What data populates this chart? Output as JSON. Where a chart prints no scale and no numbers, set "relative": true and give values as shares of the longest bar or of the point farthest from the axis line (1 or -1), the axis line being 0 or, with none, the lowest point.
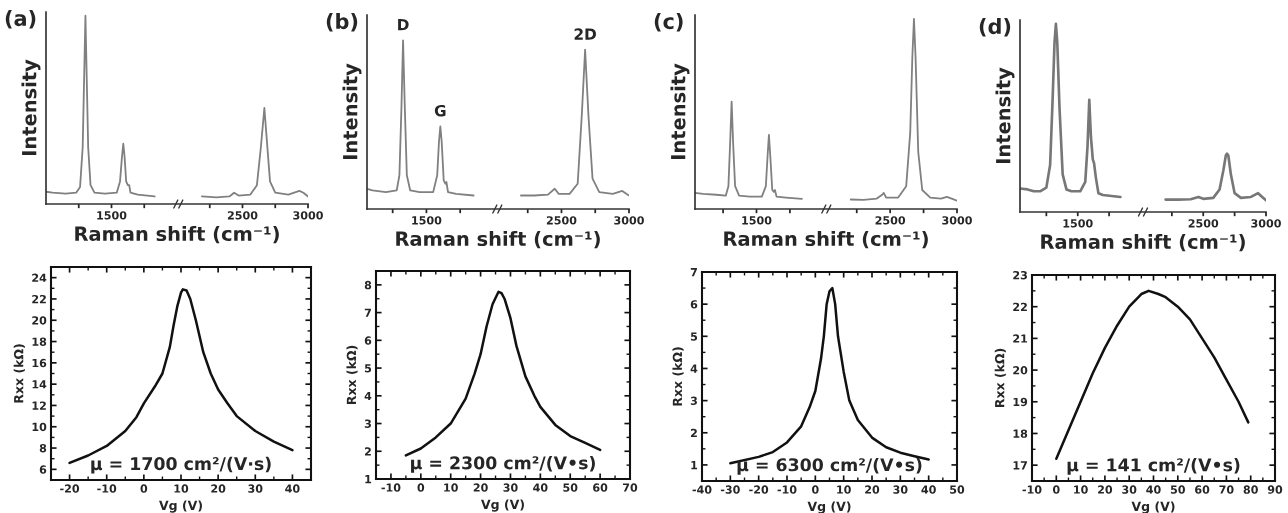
{
  "chart_data": [
    {
      "type": "line",
      "title": "(a)",
      "xlabel": "Raman shift (cm⁻¹)",
      "ylabel": "Intensity",
      "relative": true,
      "xlim": [
        1000,
        3000
      ],
      "xticks": [
        {
          "value": 1250,
          "label": null
        },
        1500,
        {
          "value": 1750,
          "label": null
        },
        {
          "value": 2250,
          "label": null
        },
        2500,
        {
          "value": 2750,
          "label": null
        },
        3000
      ],
      "series": [
        {
          "color": "#808080",
          "x": [
            1000,
            1050,
            1150,
            1230,
            1260,
            1280,
            1292,
            1301,
            1310,
            1322,
            1340,
            1370,
            1450,
            1540,
            1565,
            1580,
            1590,
            1600,
            1612,
            1625,
            1635,
            1645,
            1700,
            1830
          ],
          "values": [
            0.065,
            0.06,
            0.055,
            0.06,
            0.09,
            0.3,
            0.7,
            1,
            0.7,
            0.3,
            0.1,
            0.06,
            0.055,
            0.06,
            0.12,
            0.25,
            0.32,
            0.25,
            0.12,
            0.1,
            0.1,
            0.06,
            0.05,
            0.04
          ]
        },
        {
          "color": "#808080",
          "x": [
            2190,
            2300,
            2400,
            2436,
            2470,
            2560,
            2610,
            2640,
            2667,
            2690,
            2710,
            2750,
            2850,
            2934,
            2965,
            3000
          ],
          "values": [
            0.04,
            0.035,
            0.04,
            0.06,
            0.045,
            0.05,
            0.1,
            0.3,
            0.51,
            0.3,
            0.12,
            0.06,
            0.05,
            0.07,
            0.06,
            0.04
          ]
        }
      ]
    },
    {
      "type": "line",
      "title": "(b)",
      "xlabel": "Raman shift (cm⁻¹)",
      "ylabel": "Intensity",
      "relative": true,
      "xlim": [
        1060,
        3000
      ],
      "xticks": [
        {
          "value": 1250,
          "label": null
        },
        1500,
        {
          "value": 1750,
          "label": null
        },
        {
          "value": 2250,
          "label": null
        },
        2500,
        {
          "value": 2750,
          "label": null
        },
        3000
      ],
      "annotations": [
        {
          "text": "D",
          "x": 1327,
          "y": 1
        },
        {
          "text": "G",
          "x": 1603,
          "y": 0.49
        },
        {
          "text": "2D",
          "x": 2675,
          "y": 0.944
        }
      ],
      "series": [
        {
          "color": "#808080",
          "x": [
            1060,
            1100,
            1200,
            1280,
            1300,
            1315,
            1327,
            1340,
            1355,
            1380,
            1450,
            1550,
            1580,
            1593,
            1603,
            1613,
            1628,
            1640,
            1648,
            1660,
            1720,
            1850
          ],
          "values": [
            0.12,
            0.11,
            0.1,
            0.11,
            0.2,
            0.6,
            1,
            0.6,
            0.2,
            0.11,
            0.1,
            0.1,
            0.2,
            0.4,
            0.49,
            0.4,
            0.17,
            0.15,
            0.16,
            0.1,
            0.09,
            0.08
          ]
        },
        {
          "color": "#808080",
          "x": [
            2200,
            2300,
            2400,
            2450,
            2480,
            2560,
            2620,
            2650,
            2675,
            2700,
            2730,
            2780,
            2880,
            2950,
            2980,
            3000
          ],
          "values": [
            0.08,
            0.08,
            0.085,
            0.12,
            0.09,
            0.09,
            0.15,
            0.55,
            0.944,
            0.55,
            0.18,
            0.1,
            0.09,
            0.107,
            0.09,
            0.08
          ]
        }
      ]
    },
    {
      "type": "line",
      "title": "(c)",
      "xlabel": "Raman shift (cm⁻¹)",
      "ylabel": "Intensity",
      "relative": true,
      "xlim": [
        1040,
        3000
      ],
      "xticks": [
        {
          "value": 1250,
          "label": null
        },
        1500,
        {
          "value": 1750,
          "label": null
        },
        {
          "value": 2250,
          "label": null
        },
        2500,
        {
          "value": 2750,
          "label": null
        },
        3000
      ],
      "series": [
        {
          "color": "#808080",
          "x": [
            1040,
            1100,
            1200,
            1270,
            1290,
            1303,
            1314,
            1325,
            1340,
            1370,
            1450,
            1540,
            1570,
            1583,
            1593,
            1603,
            1618,
            1630,
            1638,
            1650,
            1720,
            1840
          ],
          "values": [
            0.085,
            0.08,
            0.075,
            0.07,
            0.12,
            0.35,
            0.565,
            0.35,
            0.12,
            0.07,
            0.065,
            0.065,
            0.12,
            0.28,
            0.39,
            0.28,
            0.1,
            0.09,
            0.1,
            0.065,
            0.06,
            0.053
          ]
        },
        {
          "color": "#808080",
          "x": [
            2205,
            2300,
            2400,
            2440,
            2452,
            2470,
            2560,
            2620,
            2650,
            2666,
            2678,
            2690,
            2710,
            2740,
            2800,
            2880,
            2924,
            2960,
            3000
          ],
          "values": [
            0.05,
            0.048,
            0.055,
            0.075,
            0.085,
            0.06,
            0.06,
            0.12,
            0.4,
            0.8,
            1,
            0.8,
            0.3,
            0.1,
            0.06,
            0.055,
            0.064,
            0.055,
            0.044
          ]
        }
      ]
    },
    {
      "type": "line",
      "title": "(d)",
      "xlabel": "Raman shift (cm⁻¹)",
      "ylabel": "Intensity",
      "relative": true,
      "xlim": [
        1040,
        3000
      ],
      "xticks": [
        {
          "value": 1250,
          "label": null
        },
        1500,
        {
          "value": 1750,
          "label": null
        },
        {
          "value": 2250,
          "label": null
        },
        2500,
        {
          "value": 2750,
          "label": null
        },
        3000
      ],
      "series": [
        {
          "color": "#777777",
          "x": [
            1040,
            1100,
            1150,
            1200,
            1250,
            1280,
            1300,
            1315,
            1326,
            1337,
            1355,
            1380,
            1410,
            1450,
            1520,
            1560,
            1578,
            1592,
            1605,
            1620,
            1630,
            1645,
            1665,
            1700,
            1840
          ],
          "values": [
            0.125,
            0.12,
            0.11,
            0.11,
            0.13,
            0.25,
            0.6,
            0.9,
            1,
            0.9,
            0.55,
            0.2,
            0.12,
            0.11,
            0.11,
            0.16,
            0.35,
            0.596,
            0.4,
            0.28,
            0.26,
            0.18,
            0.1,
            0.09,
            0.08
          ]
        },
        {
          "color": "#777777",
          "x": [
            2200,
            2300,
            2400,
            2462,
            2500,
            2580,
            2630,
            2660,
            2680,
            2689,
            2700,
            2720,
            2750,
            2800,
            2880,
            2937,
            2970,
            3000
          ],
          "values": [
            0.066,
            0.066,
            0.068,
            0.08,
            0.07,
            0.075,
            0.12,
            0.22,
            0.3,
            0.31,
            0.3,
            0.2,
            0.1,
            0.075,
            0.08,
            0.1,
            0.08,
            0.062
          ]
        }
      ]
    },
    {
      "type": "line",
      "xlabel": "Vg (V)",
      "ylabel": "Rxx (kΩ)",
      "xlim": [
        -25,
        45
      ],
      "ylim": [
        5,
        25
      ],
      "xticks": [
        -20,
        -10,
        0,
        10,
        20,
        30,
        40
      ],
      "yticks": [
        6,
        8,
        10,
        12,
        14,
        16,
        18,
        20,
        22,
        24
      ],
      "annotations": [
        "μ = 1700 cm²/(V·s)"
      ],
      "series": [
        {
          "color": "#111111",
          "x": [
            -20,
            -15,
            -10,
            -5,
            -2,
            0,
            3,
            5,
            7,
            8,
            9,
            10,
            10.5,
            11.5,
            12.5,
            14,
            16,
            18,
            20,
            22.5,
            25,
            30,
            35,
            40
          ],
          "values": [
            6.6,
            7.3,
            8.2,
            9.6,
            10.9,
            12.2,
            13.8,
            15.0,
            17.5,
            19.5,
            21.3,
            22.6,
            22.9,
            22.8,
            22.0,
            20.0,
            17.0,
            15.0,
            13.5,
            12.2,
            11.0,
            9.6,
            8.6,
            7.8
          ]
        }
      ]
    },
    {
      "type": "line",
      "xlabel": "Vg (V)",
      "ylabel": "Rxx (kΩ)",
      "xlim": [
        -15,
        70
      ],
      "ylim": [
        1,
        8.5
      ],
      "xticks": [
        -10,
        0,
        10,
        20,
        30,
        40,
        50,
        60,
        70
      ],
      "yticks": [
        1,
        2,
        3,
        4,
        5,
        6,
        7,
        8
      ],
      "annotations": [
        "μ = 2300 cm²/(V•s)"
      ],
      "series": [
        {
          "color": "#111111",
          "x": [
            -5,
            0,
            5,
            10,
            15,
            18,
            20,
            22,
            24,
            26,
            27,
            28,
            30,
            32,
            35,
            38,
            40,
            45,
            50,
            55,
            60
          ],
          "values": [
            1.85,
            2.1,
            2.5,
            3.0,
            3.9,
            4.8,
            5.5,
            6.5,
            7.3,
            7.75,
            7.7,
            7.5,
            6.8,
            5.8,
            4.7,
            4.0,
            3.6,
            2.95,
            2.55,
            2.3,
            2.05
          ]
        }
      ]
    },
    {
      "type": "line",
      "xlabel": "Vg (V)",
      "ylabel": "Rxx (kΩ)",
      "xlim": [
        -40,
        50
      ],
      "ylim": [
        0.5,
        7
      ],
      "xticks": [
        -40,
        -30,
        -20,
        -10,
        0,
        10,
        20,
        30,
        40,
        50
      ],
      "yticks": [
        1,
        2,
        3,
        4,
        5,
        6,
        7
      ],
      "annotations": [
        "μ = 6300 cm²/(V•s)"
      ],
      "series": [
        {
          "color": "#111111",
          "x": [
            -30,
            -20,
            -15,
            -10,
            -5,
            -2,
            0,
            2,
            3,
            4,
            5,
            6,
            7,
            8,
            10,
            12,
            15,
            20,
            25,
            30,
            35,
            40
          ],
          "values": [
            1.05,
            1.25,
            1.4,
            1.7,
            2.2,
            2.8,
            3.3,
            4.3,
            5.0,
            6.0,
            6.4,
            6.5,
            6.0,
            5.0,
            3.9,
            3.0,
            2.4,
            1.85,
            1.55,
            1.38,
            1.27,
            1.17
          ]
        }
      ]
    },
    {
      "type": "line",
      "xlabel": "Vg (V)",
      "ylabel": "Rxx (kΩ)",
      "xlim": [
        -10,
        90
      ],
      "ylim": [
        16.5,
        23
      ],
      "xticks": [
        -10,
        0,
        10,
        20,
        30,
        40,
        50,
        60,
        70,
        80,
        90
      ],
      "yticks": [
        17,
        18,
        19,
        20,
        21,
        22,
        23
      ],
      "annotations": [
        "μ = 141 cm²/(V•s)"
      ],
      "series": [
        {
          "color": "#111111",
          "x": [
            0,
            5,
            10,
            15,
            20,
            25,
            30,
            35,
            38,
            42,
            45,
            50,
            55,
            60,
            65,
            70,
            75,
            79
          ],
          "values": [
            17.2,
            18.1,
            19.0,
            19.9,
            20.7,
            21.4,
            22.0,
            22.4,
            22.5,
            22.4,
            22.3,
            22.0,
            21.6,
            21.0,
            20.4,
            19.7,
            19.0,
            18.35
          ]
        }
      ]
    }
  ]
}
